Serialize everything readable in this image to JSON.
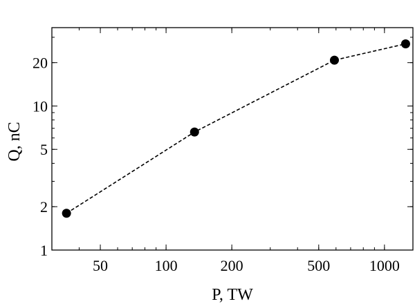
{
  "chart_data": {
    "type": "scatter",
    "xlabel": "P, TW",
    "ylabel": "Q, nC",
    "x_scale": "log",
    "y_scale": "log",
    "xlim": [
      30,
      1350
    ],
    "ylim": [
      1,
      35
    ],
    "x_ticks": [
      50,
      100,
      200,
      500,
      1000
    ],
    "x_tick_labels": [
      "50",
      "100",
      "200",
      "500",
      "1000"
    ],
    "y_ticks": [
      1,
      2,
      5,
      10,
      20
    ],
    "y_tick_labels": [
      "1",
      "2",
      "5",
      "10",
      "20"
    ],
    "grid": false,
    "legend": "none",
    "series": [
      {
        "line_style": "dashed",
        "marker": "filled-circle",
        "color": "#000000",
        "x": [
          35,
          135,
          590,
          1250
        ],
        "y": [
          1.8,
          6.6,
          20.8,
          27
        ]
      }
    ]
  }
}
